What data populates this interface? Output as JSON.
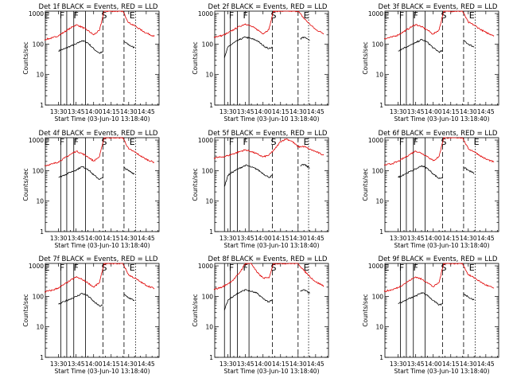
{
  "chart_data": [
    {
      "type": "line",
      "title": "Det 1f BLACK = Events, RED = LLD",
      "xlabel": "Start Time (03-Jun-10 13:18:40)",
      "ylabel": "Counts/sec",
      "x_ticks": [
        "13:30",
        "13:45",
        "14:00",
        "14:15",
        "14:30",
        "14:45"
      ],
      "y_ticks": [
        "1",
        "10",
        "100",
        "1000"
      ],
      "ylim": [
        1,
        1200
      ],
      "y_scale": "log",
      "segment_labels": [
        "E",
        "F",
        "F",
        "S",
        "E"
      ],
      "series": [
        {
          "color": "#000000",
          "t": [
            "13:30",
            "13:35",
            "13:40",
            "13:45",
            "13:50",
            "13:55",
            "14:00",
            "14:05",
            "14:08",
            "14:26",
            "14:30",
            "14:35"
          ],
          "values": [
            60,
            70,
            85,
            100,
            130,
            110,
            70,
            50,
            55,
            120,
            95,
            75
          ]
        },
        {
          "color": "#e00000",
          "t": [
            "13:18",
            "13:25",
            "13:30",
            "13:35",
            "13:40",
            "13:45",
            "13:50",
            "13:55",
            "14:00",
            "14:05",
            "14:09",
            "14:25",
            "14:30",
            "14:35",
            "14:40",
            "14:45",
            "14:52"
          ],
          "values": [
            140,
            160,
            190,
            250,
            330,
            430,
            360,
            280,
            200,
            280,
            1200,
            1200,
            500,
            400,
            300,
            230,
            180
          ]
        }
      ]
    },
    {
      "type": "line",
      "title": "Det 2f BLACK = Events, RED = LLD",
      "xlabel": "Start Time (03-Jun-10 13:18:40)",
      "ylabel": "Counts/sec",
      "x_ticks": [
        "13:30",
        "13:45",
        "14:00",
        "14:15",
        "14:30",
        "14:45"
      ],
      "y_ticks": [
        "1",
        "10",
        "100",
        "1000"
      ],
      "ylim": [
        1,
        1200
      ],
      "y_scale": "log",
      "segment_labels": [
        "F",
        "F",
        "S",
        "E"
      ],
      "series": [
        {
          "color": "#000000",
          "t": [
            "13:27",
            "13:30",
            "13:35",
            "13:40",
            "13:45",
            "13:50",
            "13:55",
            "14:00",
            "14:05",
            "14:08",
            "14:32",
            "14:35",
            "14:40"
          ],
          "values": [
            35,
            80,
            110,
            140,
            170,
            150,
            130,
            90,
            70,
            80,
            150,
            170,
            130
          ]
        },
        {
          "color": "#e00000",
          "t": [
            "13:18",
            "13:25",
            "13:30",
            "13:35",
            "13:40",
            "13:45",
            "13:50",
            "13:55",
            "14:00",
            "14:05",
            "14:09",
            "14:30",
            "14:35",
            "14:40",
            "14:45",
            "14:52"
          ],
          "values": [
            170,
            190,
            230,
            300,
            380,
            460,
            380,
            300,
            220,
            300,
            1200,
            1200,
            700,
            450,
            300,
            220
          ]
        }
      ]
    },
    {
      "type": "line",
      "title": "Det 3f BLACK = Events, RED = LLD",
      "xlabel": "Start Time (03-Jun-10 13:18:40)",
      "ylabel": "Counts/sec",
      "x_ticks": [
        "13:30",
        "13:45",
        "14:00",
        "14:15",
        "14:30",
        "14:45"
      ],
      "y_ticks": [
        "1",
        "10",
        "100",
        "1000"
      ],
      "ylim": [
        1,
        1200
      ],
      "y_scale": "log",
      "segment_labels": [
        "E",
        "F",
        "F",
        "S",
        "E"
      ],
      "series": [
        {
          "color": "#000000",
          "t": [
            "13:30",
            "13:35",
            "13:40",
            "13:45",
            "13:50",
            "13:55",
            "14:00",
            "14:05",
            "14:08",
            "14:26",
            "14:30",
            "14:35"
          ],
          "values": [
            60,
            75,
            90,
            110,
            140,
            115,
            75,
            55,
            60,
            130,
            100,
            80
          ]
        },
        {
          "color": "#e00000",
          "t": [
            "13:18",
            "13:25",
            "13:30",
            "13:35",
            "13:40",
            "13:45",
            "13:50",
            "13:55",
            "14:00",
            "14:05",
            "14:09",
            "14:25",
            "14:30",
            "14:35",
            "14:40",
            "14:45",
            "14:52"
          ],
          "values": [
            150,
            170,
            200,
            260,
            340,
            440,
            370,
            290,
            210,
            290,
            1200,
            1200,
            520,
            420,
            310,
            240,
            190
          ]
        }
      ]
    },
    {
      "type": "line",
      "title": "Det 4f BLACK = Events, RED = LLD",
      "xlabel": "Start Time (03-Jun-10 13:18:40)",
      "ylabel": "Counts/sec",
      "x_ticks": [
        "13:30",
        "13:45",
        "14:00",
        "14:15",
        "14:30",
        "14:45"
      ],
      "y_ticks": [
        "1",
        "10",
        "100",
        "1000"
      ],
      "ylim": [
        1,
        1200
      ],
      "y_scale": "log",
      "segment_labels": [
        "E",
        "F",
        "F",
        "S",
        "E"
      ],
      "series": [
        {
          "color": "#000000",
          "t": [
            "13:30",
            "13:35",
            "13:40",
            "13:45",
            "13:50",
            "13:55",
            "14:00",
            "14:05",
            "14:08",
            "14:26",
            "14:30",
            "14:35"
          ],
          "values": [
            60,
            72,
            88,
            105,
            135,
            112,
            72,
            52,
            58,
            125,
            98,
            78
          ]
        },
        {
          "color": "#e00000",
          "t": [
            "13:18",
            "13:25",
            "13:30",
            "13:35",
            "13:40",
            "13:45",
            "13:50",
            "13:55",
            "14:00",
            "14:05",
            "14:09",
            "14:25",
            "14:30",
            "14:35",
            "14:40",
            "14:45",
            "14:52"
          ],
          "values": [
            145,
            165,
            195,
            255,
            335,
            435,
            365,
            285,
            205,
            285,
            1200,
            1200,
            510,
            410,
            305,
            235,
            185
          ]
        }
      ]
    },
    {
      "type": "line",
      "title": "Det 5f BLACK = Events, RED = LLD",
      "xlabel": "Start Time (03-Jun-10 13:18:40)",
      "ylabel": "Counts/sec",
      "x_ticks": [
        "13:30",
        "13:45",
        "14:00",
        "14:15",
        "14:30",
        "14:45"
      ],
      "y_ticks": [
        "1",
        "10",
        "100",
        "1000"
      ],
      "ylim": [
        1,
        1200
      ],
      "y_scale": "log",
      "segment_labels": [
        "F",
        "F",
        "S",
        "E"
      ],
      "series": [
        {
          "color": "#000000",
          "t": [
            "13:27",
            "13:30",
            "13:35",
            "13:40",
            "13:45",
            "13:50",
            "13:55",
            "14:00",
            "14:05",
            "14:08",
            "14:32",
            "14:35",
            "14:40"
          ],
          "values": [
            30,
            70,
            95,
            120,
            150,
            130,
            110,
            80,
            60,
            70,
            140,
            160,
            120
          ]
        },
        {
          "color": "#e00000",
          "t": [
            "13:18",
            "13:25",
            "13:30",
            "13:35",
            "13:40",
            "13:45",
            "13:50",
            "13:55",
            "14:00",
            "14:05",
            "14:10",
            "14:15",
            "14:20",
            "14:25",
            "14:30",
            "14:35",
            "14:40",
            "14:45",
            "14:52"
          ],
          "values": [
            260,
            280,
            310,
            360,
            420,
            480,
            420,
            350,
            280,
            320,
            500,
            900,
            1100,
            900,
            600,
            620,
            500,
            420,
            320
          ]
        }
      ]
    },
    {
      "type": "line",
      "title": "Det 6f BLACK = Events, RED = LLD",
      "xlabel": "Start Time (03-Jun-10 13:18:40)",
      "ylabel": "Counts/sec",
      "x_ticks": [
        "13:30",
        "13:45",
        "14:00",
        "14:15",
        "14:30",
        "14:45"
      ],
      "y_ticks": [
        "1",
        "10",
        "100",
        "1000"
      ],
      "ylim": [
        1,
        1200
      ],
      "y_scale": "log",
      "segment_labels": [
        "F",
        "F",
        "S",
        "E"
      ],
      "series": [
        {
          "color": "#000000",
          "t": [
            "13:30",
            "13:35",
            "13:40",
            "13:45",
            "13:50",
            "13:55",
            "14:00",
            "14:05",
            "14:08",
            "14:26",
            "14:30",
            "14:35"
          ],
          "values": [
            60,
            75,
            92,
            112,
            145,
            118,
            78,
            55,
            60,
            130,
            102,
            82
          ]
        },
        {
          "color": "#e00000",
          "t": [
            "13:18",
            "13:25",
            "13:30",
            "13:35",
            "13:40",
            "13:45",
            "13:50",
            "13:55",
            "14:00",
            "14:05",
            "14:09",
            "14:25",
            "14:30",
            "14:35",
            "14:40",
            "14:45",
            "14:52"
          ],
          "values": [
            150,
            170,
            200,
            260,
            340,
            440,
            370,
            290,
            210,
            290,
            1200,
            1200,
            520,
            420,
            310,
            240,
            190
          ]
        }
      ]
    },
    {
      "type": "line",
      "title": "Det 7f BLACK = Events, RED = LLD",
      "xlabel": "Start Time (03-Jun-10 13:18:40)",
      "ylabel": "Counts/sec",
      "x_ticks": [
        "13:30",
        "13:45",
        "14:00",
        "14:15",
        "14:30",
        "14:45"
      ],
      "y_ticks": [
        "1",
        "10",
        "100",
        "1000"
      ],
      "ylim": [
        1,
        1200
      ],
      "y_scale": "log",
      "segment_labels": [
        "E",
        "F",
        "F",
        "S",
        "E"
      ],
      "series": [
        {
          "color": "#000000",
          "t": [
            "13:30",
            "13:35",
            "13:40",
            "13:45",
            "13:50",
            "13:55",
            "14:00",
            "14:05",
            "14:08",
            "14:26",
            "14:30",
            "14:35"
          ],
          "values": [
            55,
            68,
            82,
            98,
            125,
            105,
            68,
            48,
            52,
            115,
            90,
            72
          ]
        },
        {
          "color": "#e00000",
          "t": [
            "13:18",
            "13:25",
            "13:30",
            "13:35",
            "13:40",
            "13:45",
            "13:50",
            "13:55",
            "14:00",
            "14:05",
            "14:09",
            "14:25",
            "14:30",
            "14:35",
            "14:40",
            "14:45",
            "14:52"
          ],
          "values": [
            140,
            160,
            190,
            250,
            330,
            430,
            360,
            280,
            200,
            280,
            1200,
            1200,
            500,
            400,
            300,
            230,
            180
          ]
        }
      ]
    },
    {
      "type": "line",
      "title": "Det 8f BLACK = Events, RED = LLD",
      "xlabel": "Start Time (03-Jun-10 13:18:40)",
      "ylabel": "Counts/sec",
      "x_ticks": [
        "13:30",
        "13:45",
        "14:00",
        "14:15",
        "14:30",
        "14:45"
      ],
      "y_ticks": [
        "1",
        "10",
        "100",
        "1000"
      ],
      "ylim": [
        1,
        1200
      ],
      "y_scale": "log",
      "segment_labels": [
        "F",
        "F",
        "S",
        "E"
      ],
      "series": [
        {
          "color": "#000000",
          "t": [
            "13:27",
            "13:30",
            "13:35",
            "13:40",
            "13:45",
            "13:50",
            "13:55",
            "14:00",
            "14:05",
            "14:08",
            "14:32",
            "14:35",
            "14:40"
          ],
          "values": [
            35,
            75,
            105,
            135,
            165,
            145,
            125,
            85,
            65,
            75,
            145,
            165,
            125
          ]
        },
        {
          "color": "#e00000",
          "t": [
            "13:18",
            "13:25",
            "13:30",
            "13:35",
            "13:40",
            "13:45",
            "13:50",
            "13:55",
            "14:00",
            "14:05",
            "14:09",
            "14:30",
            "14:35",
            "14:40",
            "14:45",
            "14:52"
          ],
          "values": [
            170,
            200,
            260,
            360,
            600,
            1200,
            1200,
            600,
            400,
            400,
            1200,
            1200,
            700,
            450,
            300,
            220
          ]
        }
      ]
    },
    {
      "type": "line",
      "title": "Det 9f BLACK = Events, RED = LLD",
      "xlabel": "Start Time (03-Jun-10 13:18:40)",
      "ylabel": "Counts/sec",
      "x_ticks": [
        "13:30",
        "13:45",
        "14:00",
        "14:15",
        "14:30",
        "14:45"
      ],
      "y_ticks": [
        "1",
        "10",
        "100",
        "1000"
      ],
      "ylim": [
        1,
        1200
      ],
      "y_scale": "log",
      "segment_labels": [
        "E",
        "F",
        "F",
        "S",
        "E"
      ],
      "series": [
        {
          "color": "#000000",
          "t": [
            "13:30",
            "13:35",
            "13:40",
            "13:45",
            "13:50",
            "13:55",
            "14:00",
            "14:05",
            "14:08",
            "14:26",
            "14:30",
            "14:35"
          ],
          "values": [
            58,
            70,
            86,
            102,
            132,
            110,
            72,
            52,
            56,
            122,
            96,
            76
          ]
        },
        {
          "color": "#e00000",
          "t": [
            "13:18",
            "13:25",
            "13:30",
            "13:35",
            "13:40",
            "13:45",
            "13:50",
            "13:55",
            "14:00",
            "14:05",
            "14:09",
            "14:25",
            "14:30",
            "14:35",
            "14:40",
            "14:45",
            "14:52"
          ],
          "values": [
            145,
            165,
            195,
            255,
            335,
            435,
            365,
            285,
            205,
            285,
            1200,
            1200,
            510,
            410,
            305,
            235,
            185
          ]
        }
      ]
    }
  ]
}
